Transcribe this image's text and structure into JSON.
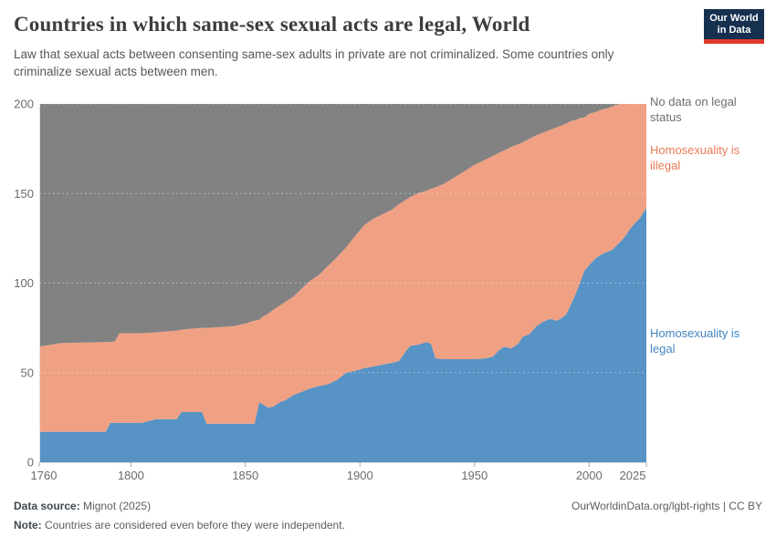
{
  "header": {
    "title": "Countries in which same-sex sexual acts are legal, World",
    "subtitle": "Law that sexual acts between consenting same-sex adults in private are not criminalized. Some countries only criminalize sexual acts between men.",
    "logo": {
      "line1": "Our World",
      "line2": "in Data"
    }
  },
  "legend": {
    "no_data": "No data on legal status",
    "illegal": "Homosexuality is illegal",
    "legal": "Homosexuality is legal"
  },
  "footer": {
    "source_label": "Data source:",
    "source_value": " Mignot (2025)",
    "note_label": "Note:",
    "note_value": " Countries are considered even before they were independent.",
    "link": "OurWorldinData.org/lgbt-rights",
    "license": " | CC BY"
  },
  "colors": {
    "legal_area": "#5793c5",
    "illegal_area": "#f0a183",
    "no_data_area": "#828282",
    "legal_label": "#4384c0",
    "illegal_label": "#e97b55",
    "no_data_label": "#6e6e6e",
    "logo_navy": "#16304f",
    "logo_red": "#dc3a2a"
  },
  "chart_data": {
    "type": "area",
    "stacked": true,
    "title": "Countries in which same-sex sexual acts are legal, World",
    "xlabel": "",
    "ylabel": "",
    "grid": "horizontal dashed",
    "legend_position": "right",
    "xlim": [
      1760,
      2025
    ],
    "ylim": [
      0,
      200
    ],
    "x_ticks": [
      1760,
      1800,
      1850,
      1900,
      1950,
      2000,
      2025
    ],
    "y_ticks": [
      0,
      50,
      100,
      150,
      200
    ],
    "x": [
      1760,
      1767,
      1770,
      1789,
      1791,
      1793,
      1795,
      1805,
      1811,
      1815,
      1820,
      1822,
      1826,
      1831,
      1833,
      1840,
      1845,
      1850,
      1854,
      1856,
      1858,
      1860,
      1862,
      1865,
      1868,
      1871,
      1875,
      1878,
      1882,
      1886,
      1890,
      1894,
      1898,
      1902,
      1906,
      1910,
      1914,
      1917,
      1920,
      1922,
      1925,
      1929,
      1931,
      1933,
      1936,
      1940,
      1945,
      1950,
      1955,
      1958,
      1961,
      1963,
      1966,
      1969,
      1971,
      1974,
      1977,
      1980,
      1983,
      1986,
      1988,
      1990,
      1992,
      1994,
      1996,
      1998,
      2000,
      2003,
      2006,
      2008,
      2010,
      2012,
      2014,
      2016,
      2018,
      2020,
      2022,
      2024,
      2025
    ],
    "series": [
      {
        "name": "Homosexuality is legal",
        "color": "#5793c5",
        "values": [
          17,
          17,
          17,
          17,
          22,
          22,
          22,
          22,
          24,
          24,
          24,
          28,
          28,
          28,
          21.5,
          21.5,
          21.5,
          21.5,
          21.5,
          33.5,
          32,
          30.5,
          31,
          33.5,
          35,
          37.5,
          39.5,
          41,
          42.5,
          43.5,
          46,
          50,
          51,
          52.5,
          53.5,
          54.5,
          55.5,
          56.5,
          62,
          65,
          65.5,
          67,
          66,
          58,
          57.5,
          57.5,
          57.5,
          57.5,
          58,
          59,
          63,
          64.5,
          63.5,
          66,
          70,
          71.5,
          76,
          78.5,
          80,
          79,
          80.5,
          82.5,
          88,
          93.5,
          100,
          107,
          110,
          114,
          116.5,
          117.5,
          118.5,
          121,
          123.5,
          126.5,
          130.5,
          133.5,
          136,
          140,
          142
        ]
      },
      {
        "name": "Homosexuality is illegal",
        "color": "#f0a183",
        "values": [
          47.5,
          49,
          49.5,
          50,
          45,
          45.5,
          50,
          50,
          48.5,
          49,
          49.5,
          46,
          46.5,
          47,
          53.5,
          54,
          54.5,
          56,
          57.5,
          46,
          49.5,
          52.5,
          54,
          54,
          55,
          55,
          58,
          60,
          62,
          66,
          68.5,
          70,
          75.5,
          80,
          82.5,
          84,
          85.5,
          87.5,
          84.5,
          83,
          84.5,
          84.5,
          86.5,
          95.5,
          97.5,
          100.5,
          104.5,
          108.5,
          111,
          112,
          110,
          109.5,
          112.5,
          111.5,
          108.5,
          109,
          106.5,
          105.5,
          105.5,
          108,
          107.5,
          106.5,
          102.5,
          97.5,
          92,
          85.5,
          84.5,
          81.5,
          80.5,
          80,
          80,
          78.5,
          76.5,
          73.5,
          69.5,
          66.5,
          64,
          60,
          58
        ]
      },
      {
        "name": "No data on legal status",
        "color": "#828282",
        "values": [
          135.5,
          134,
          133.5,
          133,
          133,
          132.5,
          128,
          128,
          127.5,
          127,
          126.5,
          126,
          125.5,
          125,
          125,
          124.5,
          124,
          122.5,
          121,
          120.5,
          118.5,
          117,
          115,
          112.5,
          110,
          107.5,
          102.5,
          99,
          95.5,
          90.5,
          85.5,
          80,
          73.5,
          67.5,
          64,
          61.5,
          59,
          56,
          53.5,
          52,
          50,
          48.5,
          47.5,
          46.5,
          45,
          42,
          38,
          34,
          31,
          29,
          27,
          26,
          24,
          22.5,
          21.5,
          19.5,
          17.5,
          16,
          14.5,
          13,
          12,
          11,
          9.5,
          9,
          8,
          7.5,
          5.5,
          4.5,
          3,
          2.5,
          1.5,
          0.5,
          0,
          0,
          0,
          0,
          0,
          0,
          0
        ]
      }
    ]
  }
}
